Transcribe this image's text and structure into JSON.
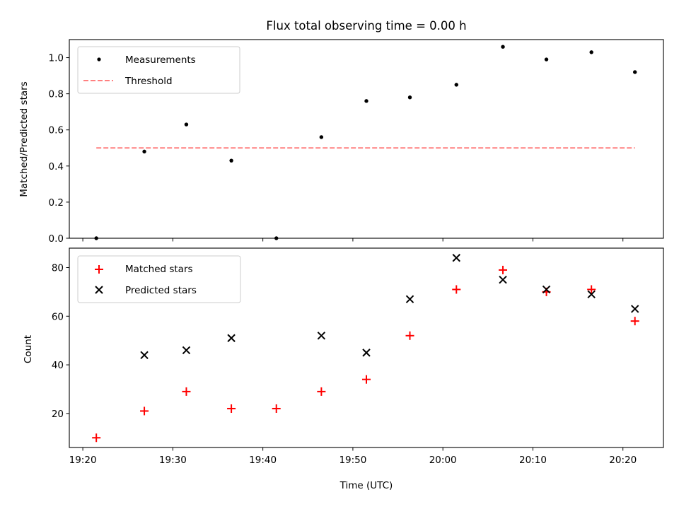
{
  "chart_data": [
    {
      "type": "scatter",
      "title": "Flux total observing time = 0.00 h",
      "ylabel": "Matched/Predicted stars",
      "xlabel": "",
      "ylim": [
        0.0,
        1.1
      ],
      "yticks": [
        0.0,
        0.2,
        0.4,
        0.6,
        0.8,
        1.0
      ],
      "ytick_labels": [
        "0.0",
        "0.2",
        "0.4",
        "0.6",
        "0.8",
        "1.0"
      ],
      "legend_position": "top-left",
      "series": [
        {
          "name": "Measurements",
          "kind": "scatter",
          "marker": "dot",
          "color": "#000000",
          "x": [
            "19:21:30",
            "19:26:50",
            "19:31:30",
            "19:36:30",
            "19:41:30",
            "19:46:30",
            "19:51:30",
            "19:56:20",
            "20:01:30",
            "20:06:40",
            "20:11:30",
            "20:16:30",
            "20:21:20"
          ],
          "y": [
            0.0,
            0.48,
            0.63,
            0.43,
            0.0,
            0.56,
            0.76,
            0.78,
            0.85,
            1.06,
            0.99,
            1.03,
            0.92
          ]
        },
        {
          "name": "Threshold",
          "kind": "line",
          "style": "dashed",
          "color": "#ff8080",
          "x": [
            "19:21:30",
            "20:21:20"
          ],
          "y": [
            0.5,
            0.5
          ]
        }
      ]
    },
    {
      "type": "scatter",
      "title": "",
      "ylabel": "Count",
      "xlabel": "Time (UTC)",
      "ylim": [
        6,
        88
      ],
      "yticks": [
        20,
        40,
        60,
        80
      ],
      "ytick_labels": [
        "20",
        "40",
        "60",
        "80"
      ],
      "xlim": [
        "19:18:30",
        "20:24:30"
      ],
      "xticks": [
        "19:20",
        "19:30",
        "19:40",
        "19:50",
        "20:00",
        "20:10",
        "20:20"
      ],
      "legend_position": "top-left",
      "series": [
        {
          "name": "Matched stars",
          "kind": "scatter",
          "marker": "plus",
          "color": "#ff0000",
          "x": [
            "19:21:30",
            "19:26:50",
            "19:31:30",
            "19:36:30",
            "19:41:30",
            "19:46:30",
            "19:51:30",
            "19:56:20",
            "20:01:30",
            "20:06:40",
            "20:11:30",
            "20:16:30",
            "20:21:20"
          ],
          "y": [
            10,
            21,
            29,
            22,
            22,
            29,
            34,
            52,
            71,
            79,
            70,
            71,
            58
          ]
        },
        {
          "name": "Predicted stars",
          "kind": "scatter",
          "marker": "x",
          "color": "#000000",
          "x": [
            "19:26:50",
            "19:31:30",
            "19:36:30",
            "19:46:30",
            "19:51:30",
            "19:56:20",
            "20:01:30",
            "20:06:40",
            "20:11:30",
            "20:16:30",
            "20:21:20"
          ],
          "y": [
            44,
            46,
            51,
            52,
            45,
            67,
            84,
            75,
            71,
            69,
            63
          ]
        }
      ]
    }
  ]
}
